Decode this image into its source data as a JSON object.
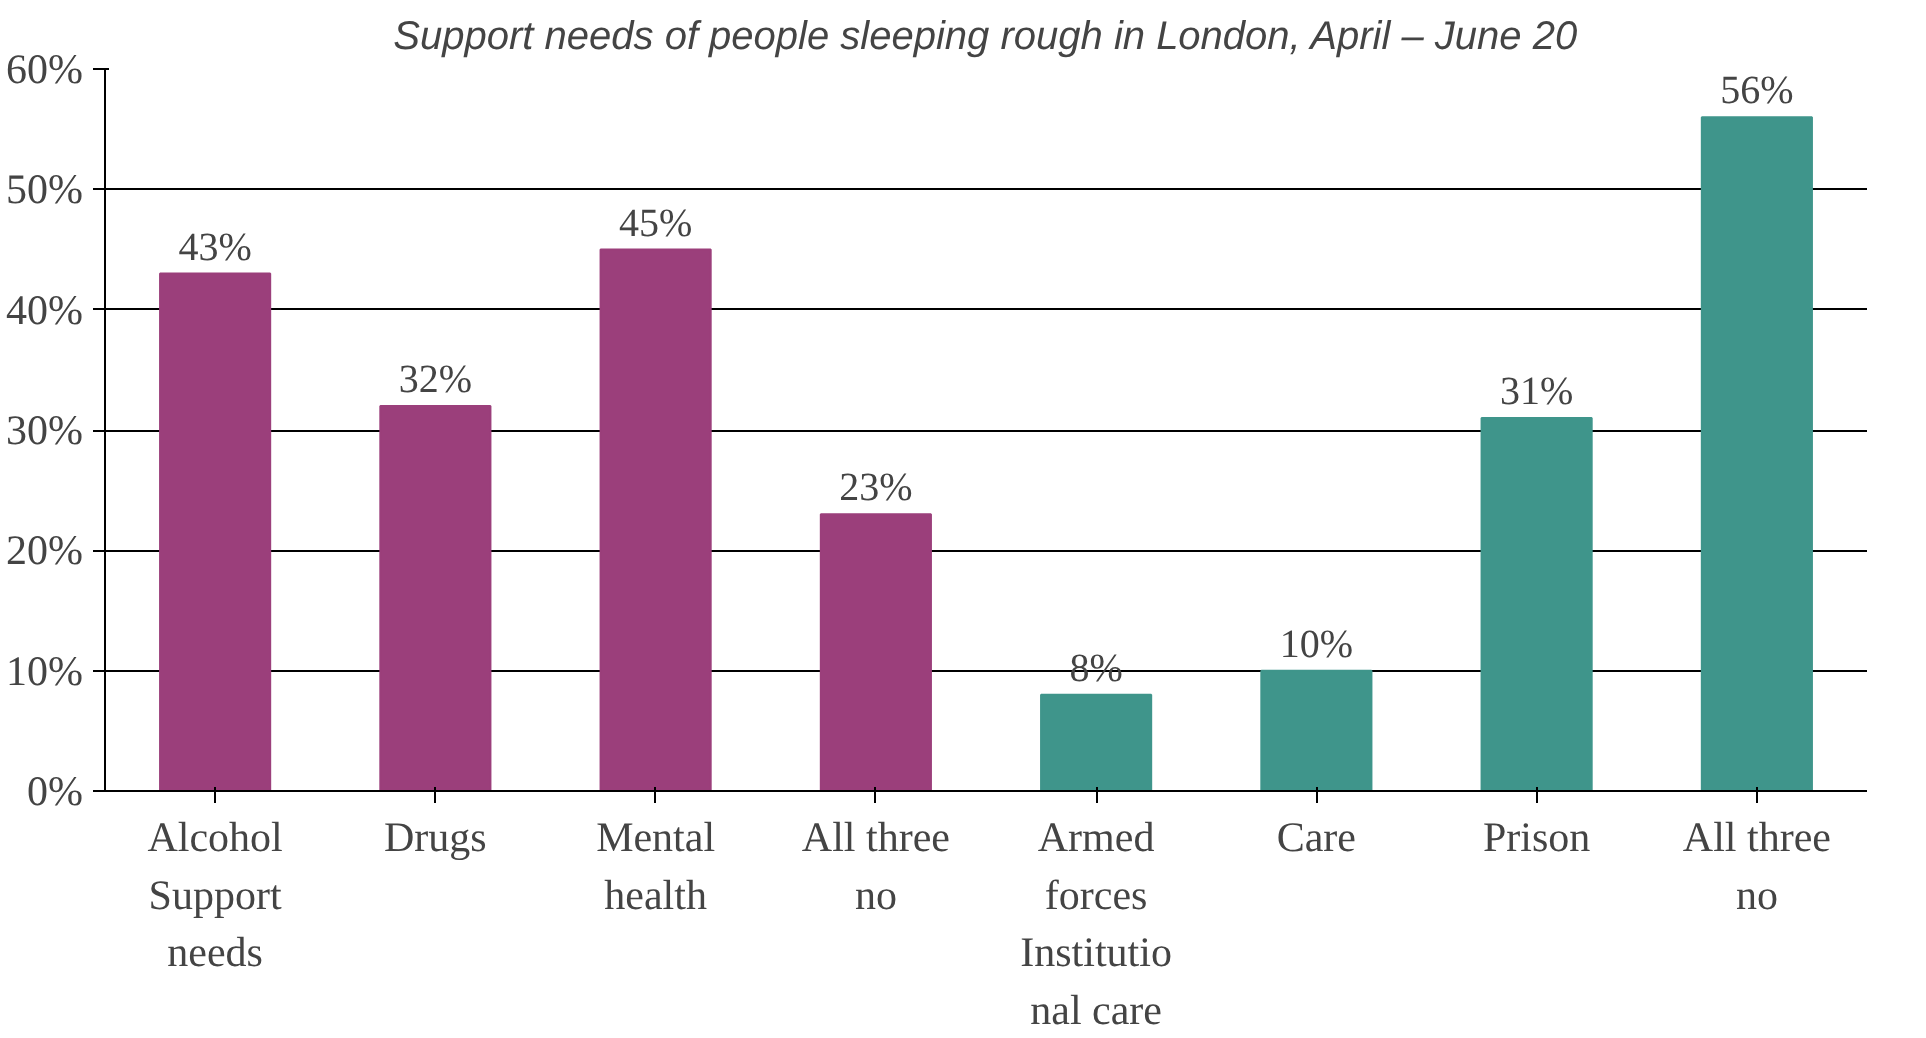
{
  "chart_data": {
    "type": "bar",
    "title": "Support needs of people sleeping rough in London, April – June 20",
    "categories": [
      "Alcohol\nSupport\nneeds",
      "Drugs",
      "Mental\nhealth",
      "All three\nno",
      "Armed\nforces\nInstitutio\nnal care",
      "Care",
      "Prison",
      "All three\nno"
    ],
    "values": [
      43,
      32,
      45,
      23,
      8,
      10,
      31,
      56
    ],
    "colors": [
      "#9b3f7b",
      "#9b3f7b",
      "#9b3f7b",
      "#9b3f7b",
      "#3f958b",
      "#3f958b",
      "#3f958b",
      "#3f958b"
    ],
    "value_labels": [
      "43%",
      "32%",
      "45%",
      "23%",
      "8%",
      "10%",
      "31%",
      "56%"
    ],
    "ylim": [
      0,
      60
    ],
    "yticks": [
      {
        "value": 0,
        "label": "0%"
      },
      {
        "value": 10,
        "label": "10%"
      },
      {
        "value": 20,
        "label": "20%"
      },
      {
        "value": 30,
        "label": "30%"
      },
      {
        "value": 40,
        "label": "40%"
      },
      {
        "value": 50,
        "label": "50%"
      },
      {
        "value": 60,
        "label": "60%"
      }
    ],
    "grid": "y"
  }
}
